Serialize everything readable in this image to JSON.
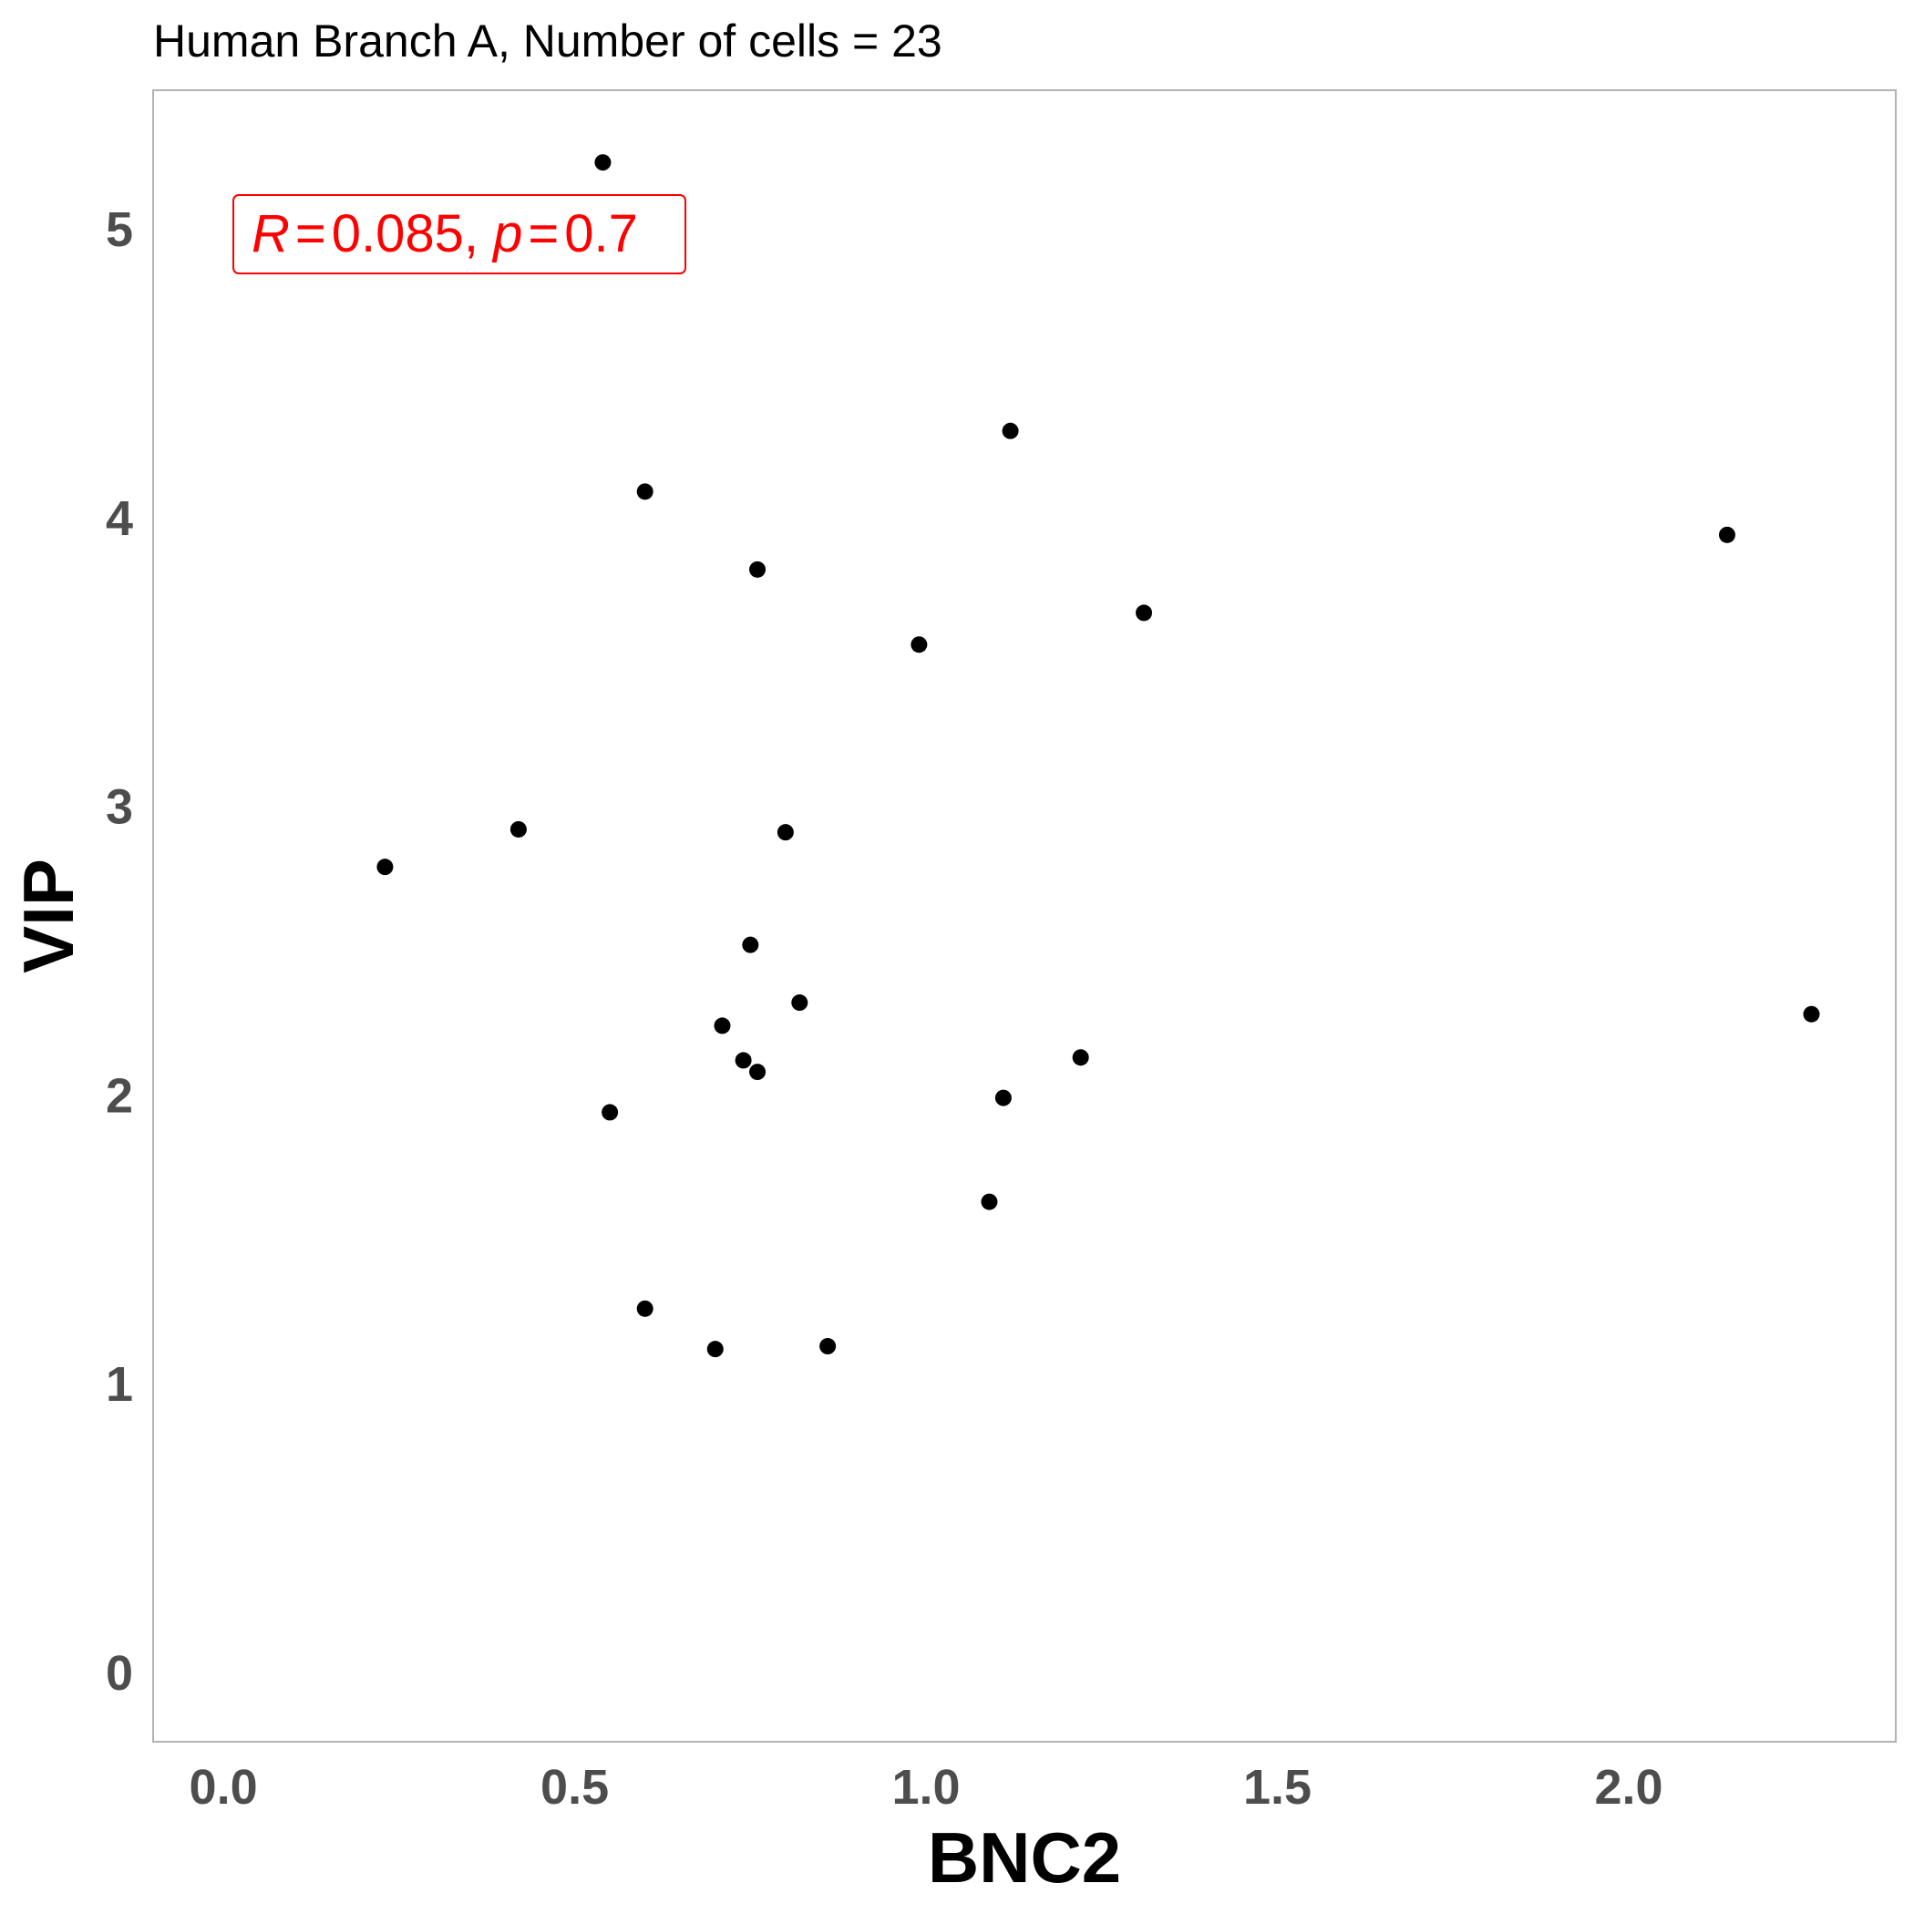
{
  "chart_data": {
    "type": "scatter",
    "title": "Human Branch A, Number of cells = 23",
    "xlabel": "BNC2",
    "ylabel": "VIP",
    "xlim": [
      -0.1,
      2.38
    ],
    "ylim": [
      -0.24,
      5.48
    ],
    "x_ticks": [
      0.0,
      0.5,
      1.0,
      1.5,
      2.0
    ],
    "x_tick_labels": [
      "0.0",
      "0.5",
      "1.0",
      "1.5",
      "2.0"
    ],
    "y_ticks": [
      0,
      1,
      2,
      3,
      4,
      5
    ],
    "y_tick_labels": [
      "0",
      "1",
      "2",
      "3",
      "4",
      "5"
    ],
    "grid": false,
    "annotation": {
      "r_symbol": "R",
      "r_value": "0.085",
      "p_symbol": "p",
      "p_value": "0.7",
      "color": "#ff0000"
    },
    "point_color": "#000000",
    "points": [
      {
        "x": 0.23,
        "y": 2.79
      },
      {
        "x": 0.42,
        "y": 2.92
      },
      {
        "x": 0.54,
        "y": 5.23
      },
      {
        "x": 0.55,
        "y": 1.94
      },
      {
        "x": 0.6,
        "y": 4.09
      },
      {
        "x": 0.6,
        "y": 1.26
      },
      {
        "x": 0.7,
        "y": 1.12
      },
      {
        "x": 0.71,
        "y": 2.24
      },
      {
        "x": 0.74,
        "y": 2.12
      },
      {
        "x": 0.75,
        "y": 2.52
      },
      {
        "x": 0.76,
        "y": 3.82
      },
      {
        "x": 0.76,
        "y": 2.08
      },
      {
        "x": 0.8,
        "y": 2.91
      },
      {
        "x": 0.82,
        "y": 2.32
      },
      {
        "x": 0.86,
        "y": 1.13
      },
      {
        "x": 0.99,
        "y": 3.56
      },
      {
        "x": 1.09,
        "y": 1.63
      },
      {
        "x": 1.11,
        "y": 1.99
      },
      {
        "x": 1.12,
        "y": 4.3
      },
      {
        "x": 1.22,
        "y": 2.13
      },
      {
        "x": 1.31,
        "y": 3.67
      },
      {
        "x": 2.14,
        "y": 3.94
      },
      {
        "x": 2.26,
        "y": 2.28
      }
    ]
  }
}
